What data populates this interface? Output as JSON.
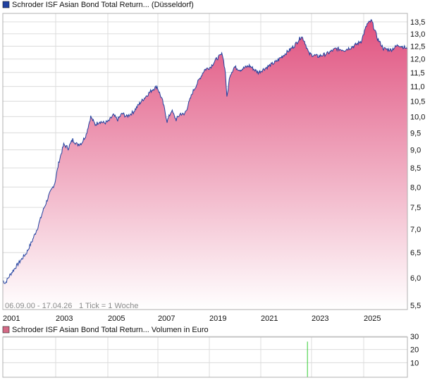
{
  "price_legend": {
    "label": "Schroder ISF Asian Bond Total Return... (Düsseldorf)",
    "color": "#2041a0"
  },
  "volume_legend": {
    "label": "Schroder ISF Asian Bond Total Return... Volumen in Euro",
    "color": "#d46a86"
  },
  "footer": {
    "range": "06.09.00 - 17.04.26",
    "tick": "1 Tick = 1 Woche"
  },
  "colors": {
    "line": "#2041a0",
    "fill_top": "#e0527f",
    "fill_bottom": "#ffffff",
    "grid": "#dcdcdc",
    "volume_bar": "#33cc33"
  },
  "chart_data": [
    {
      "type": "area",
      "y_scale": "log",
      "grid": true,
      "x_tick_labels": [
        "2001",
        "2003",
        "2005",
        "2007",
        "2019",
        "2021",
        "2023",
        "2025"
      ],
      "y_ticks": [
        5.5,
        6.0,
        6.5,
        7.0,
        7.5,
        8.0,
        8.5,
        9.0,
        9.5,
        10.0,
        10.5,
        11.0,
        11.5,
        12.0,
        12.5,
        13.0,
        13.5
      ],
      "y_tick_labels": [
        "5,5",
        "6,0",
        "6,5",
        "7,0",
        "7,5",
        "8,0",
        "8,5",
        "9,0",
        "9,5",
        "10,0",
        "10,5",
        "11,0",
        "11,5",
        "12,0",
        "12,5",
        "13,0",
        "13,5"
      ],
      "ylim": [
        5.4,
        13.8
      ],
      "series": [
        {
          "x": [
            2000.69,
            2000.8,
            2001.0,
            2001.25,
            2001.5,
            2001.75,
            2002.0,
            2002.25,
            2002.5,
            2002.75,
            2003.0,
            2003.2,
            2003.4,
            2003.6,
            2003.8,
            2004.0,
            2004.2,
            2004.4,
            2004.6,
            2004.8,
            2005.0,
            2005.2,
            2005.4,
            2005.6,
            2005.8,
            2006.0,
            2006.2,
            2006.5,
            2006.8,
            2007.1,
            2007.35,
            2007.55,
            2007.8,
            2008.0,
            2008.2,
            2008.4,
            2008.6,
            2008.75,
            2008.9,
            2019.1,
            2019.3,
            2019.5,
            2019.7,
            2019.9,
            2020.1,
            2020.2,
            2020.25,
            2020.35,
            2020.5,
            2020.7,
            2021.0,
            2021.3,
            2021.6,
            2021.9,
            2022.2,
            2022.5,
            2022.75,
            2022.85,
            2023.0,
            2023.3,
            2023.6,
            2023.9,
            2024.2,
            2024.5,
            2024.75,
            2024.95,
            2025.1,
            2025.3,
            2025.5,
            2025.75,
            2026.0,
            2026.2,
            2026.29
          ],
          "y": [
            5.95,
            5.9,
            6.05,
            6.2,
            6.35,
            6.5,
            6.75,
            7.05,
            7.45,
            7.8,
            8.1,
            8.7,
            9.15,
            9.05,
            9.3,
            9.15,
            9.2,
            9.45,
            10.0,
            9.75,
            9.85,
            9.8,
            9.85,
            10.05,
            9.9,
            10.1,
            10.0,
            10.15,
            10.45,
            10.7,
            10.9,
            11.0,
            10.5,
            9.85,
            10.2,
            9.9,
            10.1,
            10.05,
            10.3,
            10.8,
            11.2,
            11.6,
            11.7,
            12.0,
            12.2,
            11.5,
            10.6,
            11.4,
            11.7,
            11.6,
            11.75,
            11.5,
            11.7,
            11.9,
            12.2,
            12.5,
            12.9,
            12.7,
            12.2,
            12.1,
            12.2,
            12.4,
            12.35,
            12.5,
            12.7,
            13.4,
            13.55,
            12.8,
            12.4,
            12.35,
            12.55,
            12.45,
            12.4
          ]
        }
      ]
    },
    {
      "type": "bar",
      "grid": true,
      "y_ticks": [
        0,
        10,
        20,
        30
      ],
      "y_tick_labels": [
        "",
        "10",
        "20",
        "30"
      ],
      "ylim": [
        0,
        30
      ],
      "x": [
        2022.95
      ],
      "values": [
        26
      ]
    }
  ]
}
